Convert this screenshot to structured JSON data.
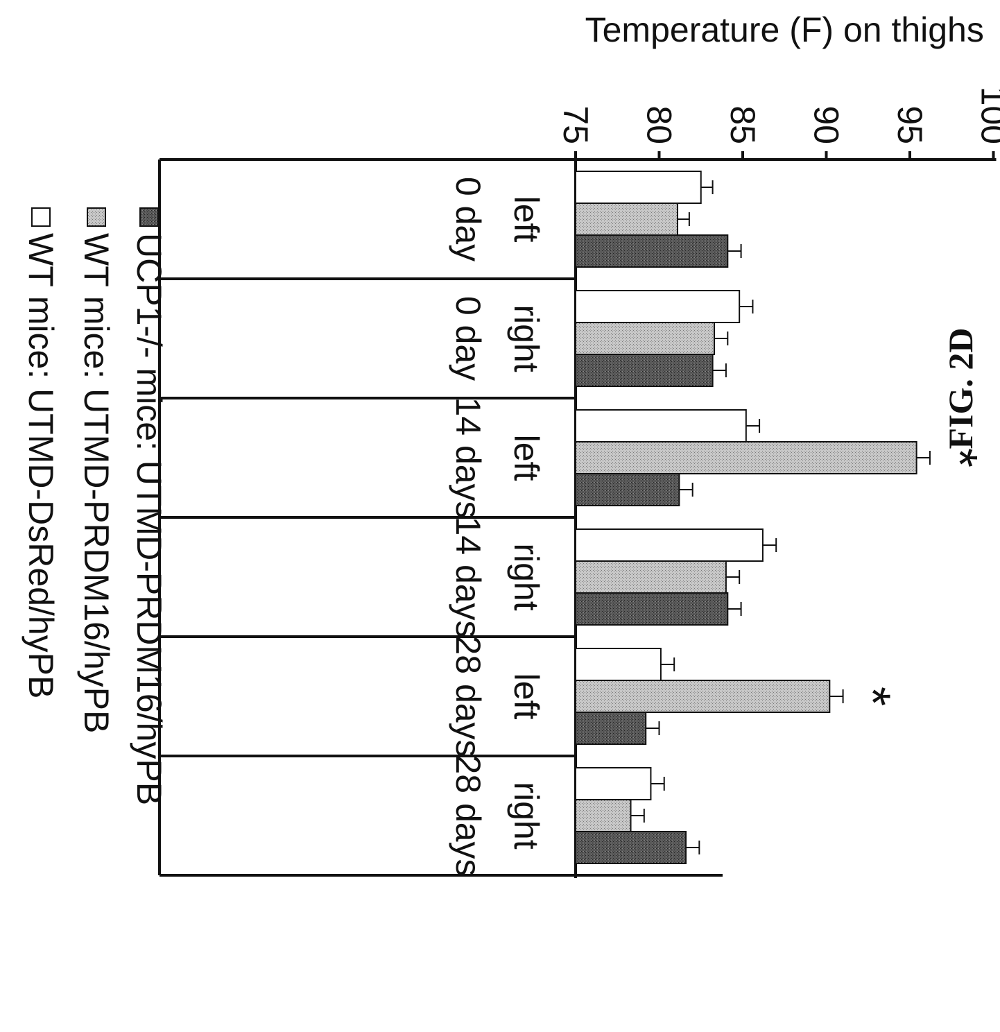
{
  "chart_data": {
    "type": "bar",
    "orientation": "rotated 90 degrees clockwise (page printed landscape)",
    "ylabel": "Temperature (F) on thighs",
    "ylim": [
      75,
      100
    ],
    "yticks": [
      "100",
      "95",
      "90",
      "85",
      "80",
      "75"
    ],
    "categories": [
      {
        "side": "left",
        "time": "0 day"
      },
      {
        "side": "right",
        "time": "0 day"
      },
      {
        "side": "left",
        "time": "14 days"
      },
      {
        "side": "right",
        "time": "14 days"
      },
      {
        "side": "left",
        "time": "28 days"
      },
      {
        "side": "right",
        "time": "28 days"
      }
    ],
    "series": [
      {
        "name": "WT mice: UTMD-DsRed/hyPB",
        "fill": "white",
        "values": [
          82.5,
          84.8,
          85.2,
          86.2,
          80.1,
          79.5
        ],
        "errors": [
          0.7,
          0.8,
          0.8,
          0.8,
          0.8,
          0.8
        ]
      },
      {
        "name": "WT mice: UTMD-PRDM16/hyPB",
        "fill": "light-gray-stipple",
        "values": [
          81.1,
          83.3,
          95.4,
          84.0,
          90.2,
          78.3
        ],
        "errors": [
          0.7,
          0.8,
          0.8,
          0.8,
          0.8,
          0.8
        ]
      },
      {
        "name": "UCP1-/- mice: UTMD-PRDM16/hyPB",
        "fill": "dark-gray-stipple",
        "values": [
          84.1,
          83.2,
          81.2,
          84.1,
          79.2,
          81.6
        ],
        "errors": [
          0.8,
          0.8,
          0.8,
          0.8,
          0.8,
          0.8
        ]
      }
    ],
    "significance_marks": [
      {
        "category_index": 2,
        "series_index": 1,
        "label": "*"
      },
      {
        "category_index": 4,
        "series_index": 1,
        "label": "*"
      }
    ],
    "legend_position": "top-left (in rotated frame)",
    "grid": false
  },
  "figure_label": "FIG. 2D",
  "colors": {
    "series_0": "#ffffff",
    "series_1": "#b4b4b4",
    "series_2": "#555555",
    "ink": "#111111"
  }
}
